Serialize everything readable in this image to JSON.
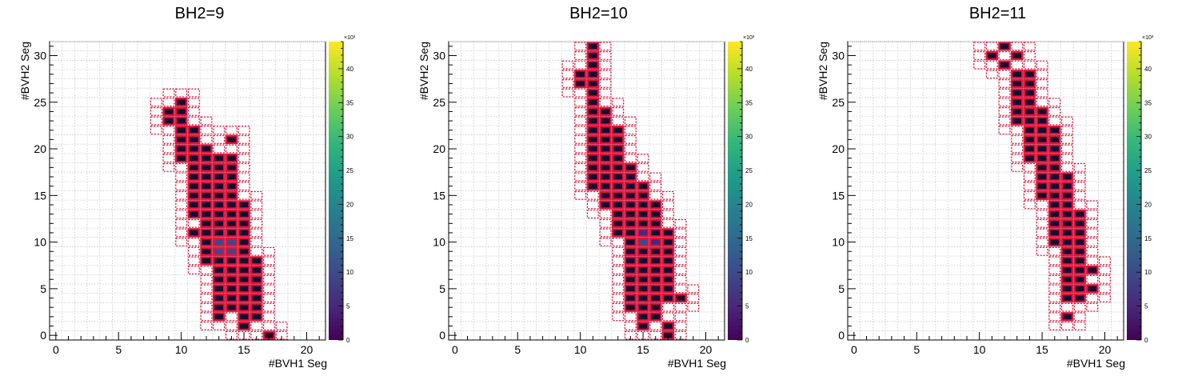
{
  "chart_data": [
    {
      "type": "heatmap",
      "title": "BH2=9",
      "xlabel": "#BVH1 Seg",
      "ylabel": "#BVH2 Seg",
      "xlim": [
        -0.5,
        21.5
      ],
      "ylim": [
        -0.5,
        31.5
      ],
      "x_ticks": [
        0,
        5,
        10,
        15,
        20
      ],
      "y_ticks": [
        0,
        5,
        10,
        15,
        20,
        25,
        30
      ],
      "z_multiplier": "×10³",
      "z_ticks": [
        0,
        5,
        10,
        15,
        20,
        25,
        30,
        35,
        40
      ],
      "zlim": [
        0,
        44
      ],
      "colormap": "viridis",
      "grid": true,
      "rows": [
        {
          "y": 0,
          "x": [
            17
          ]
        },
        {
          "y": 1,
          "x": [
            15
          ]
        },
        {
          "y": 2,
          "x": [
            13,
            15,
            16
          ]
        },
        {
          "y": 3,
          "x": [
            13,
            14,
            15,
            16
          ]
        },
        {
          "y": 4,
          "x": [
            13,
            14,
            15,
            16
          ]
        },
        {
          "y": 5,
          "x": [
            13,
            14,
            15,
            16
          ]
        },
        {
          "y": 6,
          "x": [
            13,
            14,
            15,
            16
          ]
        },
        {
          "y": 7,
          "x": [
            13,
            14,
            15,
            16
          ]
        },
        {
          "y": 8,
          "x": [
            12,
            13,
            14,
            15,
            16
          ]
        },
        {
          "y": 9,
          "x": [
            12,
            13,
            14,
            15
          ]
        },
        {
          "y": 10,
          "x": [
            12,
            13,
            14,
            15
          ]
        },
        {
          "y": 11,
          "x": [
            11,
            12,
            13,
            14,
            15
          ]
        },
        {
          "y": 12,
          "x": [
            12,
            13,
            14,
            15
          ]
        },
        {
          "y": 13,
          "x": [
            11,
            12,
            13,
            14,
            15
          ]
        },
        {
          "y": 14,
          "x": [
            11,
            12,
            13,
            14,
            15
          ]
        },
        {
          "y": 15,
          "x": [
            11,
            12,
            13,
            14
          ]
        },
        {
          "y": 16,
          "x": [
            11,
            12,
            13,
            14
          ]
        },
        {
          "y": 17,
          "x": [
            11,
            12,
            13,
            14
          ]
        },
        {
          "y": 18,
          "x": [
            11,
            12,
            13,
            14
          ]
        },
        {
          "y": 19,
          "x": [
            10,
            11,
            12,
            13,
            14
          ]
        },
        {
          "y": 20,
          "x": [
            10,
            11,
            12
          ]
        },
        {
          "y": 21,
          "x": [
            10,
            11,
            14
          ]
        },
        {
          "y": 22,
          "x": [
            10,
            11
          ]
        },
        {
          "y": 23,
          "x": [
            9,
            10
          ]
        },
        {
          "y": 24,
          "x": [
            9,
            10
          ]
        },
        {
          "y": 25,
          "x": [
            10
          ]
        }
      ],
      "highlights": [
        [
          13,
          10,
          6
        ],
        [
          14,
          10,
          5
        ],
        [
          13,
          9,
          5
        ],
        [
          14,
          9,
          4
        ]
      ]
    },
    {
      "type": "heatmap",
      "title": "BH2=10",
      "xlabel": "#BVH1 Seg",
      "ylabel": "#BVH2 Seg",
      "xlim": [
        -0.5,
        21.5
      ],
      "ylim": [
        -0.5,
        31.5
      ],
      "x_ticks": [
        0,
        5,
        10,
        15,
        20
      ],
      "y_ticks": [
        0,
        5,
        10,
        15,
        20,
        25,
        30
      ],
      "z_multiplier": "×10³",
      "z_ticks": [
        0,
        5,
        10,
        15,
        20,
        25,
        30,
        35,
        40
      ],
      "zlim": [
        0,
        44
      ],
      "colormap": "viridis",
      "grid": true,
      "rows": [
        {
          "y": 0,
          "x": [
            17
          ]
        },
        {
          "y": 1,
          "x": [
            15,
            17
          ]
        },
        {
          "y": 2,
          "x": [
            15,
            16
          ]
        },
        {
          "y": 3,
          "x": [
            14,
            15,
            16
          ]
        },
        {
          "y": 4,
          "x": [
            14,
            15,
            16,
            17,
            18
          ]
        },
        {
          "y": 5,
          "x": [
            14,
            15,
            16,
            17
          ]
        },
        {
          "y": 6,
          "x": [
            14,
            15,
            16,
            17
          ]
        },
        {
          "y": 7,
          "x": [
            14,
            15,
            16,
            17
          ]
        },
        {
          "y": 8,
          "x": [
            14,
            15,
            16,
            17
          ]
        },
        {
          "y": 9,
          "x": [
            14,
            15,
            16,
            17
          ]
        },
        {
          "y": 10,
          "x": [
            14,
            15,
            16,
            17
          ]
        },
        {
          "y": 11,
          "x": [
            13,
            14,
            15,
            16,
            17
          ]
        },
        {
          "y": 12,
          "x": [
            13,
            14,
            15,
            16
          ]
        },
        {
          "y": 13,
          "x": [
            13,
            14,
            15,
            16
          ]
        },
        {
          "y": 14,
          "x": [
            12,
            13,
            14,
            15,
            16
          ]
        },
        {
          "y": 15,
          "x": [
            12,
            13,
            14,
            15
          ]
        },
        {
          "y": 16,
          "x": [
            11,
            12,
            13,
            14,
            15
          ]
        },
        {
          "y": 17,
          "x": [
            11,
            12,
            13,
            14
          ]
        },
        {
          "y": 18,
          "x": [
            11,
            12,
            13,
            14
          ]
        },
        {
          "y": 19,
          "x": [
            11,
            12,
            13
          ]
        },
        {
          "y": 20,
          "x": [
            11,
            12,
            13
          ]
        },
        {
          "y": 21,
          "x": [
            11,
            12,
            13
          ]
        },
        {
          "y": 22,
          "x": [
            11,
            12,
            13
          ]
        },
        {
          "y": 23,
          "x": [
            11,
            12
          ]
        },
        {
          "y": 24,
          "x": [
            11,
            12
          ]
        },
        {
          "y": 25,
          "x": [
            11
          ]
        },
        {
          "y": 26,
          "x": [
            11
          ]
        },
        {
          "y": 27,
          "x": [
            10,
            11
          ]
        },
        {
          "y": 28,
          "x": [
            10,
            11
          ]
        },
        {
          "y": 29,
          "x": [
            11
          ]
        },
        {
          "y": 30,
          "x": [
            11
          ]
        },
        {
          "y": 31,
          "x": [
            11
          ]
        }
      ],
      "highlights": [
        [
          15,
          11,
          3
        ],
        [
          15,
          10,
          4
        ],
        [
          16,
          10,
          3
        ]
      ]
    },
    {
      "type": "heatmap",
      "title": "BH2=11",
      "xlabel": "#BVH1 Seg",
      "ylabel": "#BVH2 Seg",
      "xlim": [
        -0.5,
        21.5
      ],
      "ylim": [
        -0.5,
        31.5
      ],
      "x_ticks": [
        0,
        5,
        10,
        15,
        20
      ],
      "y_ticks": [
        0,
        5,
        10,
        15,
        20,
        25,
        30
      ],
      "z_multiplier": "×10³",
      "z_ticks": [
        0,
        5,
        10,
        15,
        20,
        25,
        30,
        35,
        40
      ],
      "zlim": [
        0,
        44
      ],
      "colormap": "viridis",
      "grid": true,
      "rows": [
        {
          "y": 2,
          "x": [
            17
          ]
        },
        {
          "y": 4,
          "x": [
            17,
            18
          ]
        },
        {
          "y": 5,
          "x": [
            17,
            18,
            19
          ]
        },
        {
          "y": 6,
          "x": [
            17,
            18
          ]
        },
        {
          "y": 7,
          "x": [
            17,
            18,
            19
          ]
        },
        {
          "y": 8,
          "x": [
            17,
            18
          ]
        },
        {
          "y": 9,
          "x": [
            17,
            18
          ]
        },
        {
          "y": 10,
          "x": [
            16,
            17,
            18
          ]
        },
        {
          "y": 11,
          "x": [
            16,
            17,
            18
          ]
        },
        {
          "y": 12,
          "x": [
            16,
            17,
            18
          ]
        },
        {
          "y": 13,
          "x": [
            16,
            17,
            18
          ]
        },
        {
          "y": 14,
          "x": [
            16,
            17
          ]
        },
        {
          "y": 15,
          "x": [
            15,
            16,
            17
          ]
        },
        {
          "y": 16,
          "x": [
            15,
            16,
            17
          ]
        },
        {
          "y": 17,
          "x": [
            15,
            16,
            17
          ]
        },
        {
          "y": 18,
          "x": [
            15,
            16
          ]
        },
        {
          "y": 19,
          "x": [
            14,
            15,
            16
          ]
        },
        {
          "y": 20,
          "x": [
            14,
            15,
            16
          ]
        },
        {
          "y": 21,
          "x": [
            14,
            15,
            16
          ]
        },
        {
          "y": 22,
          "x": [
            14,
            15,
            16
          ]
        },
        {
          "y": 23,
          "x": [
            13,
            14,
            15
          ]
        },
        {
          "y": 24,
          "x": [
            13,
            14,
            15
          ]
        },
        {
          "y": 25,
          "x": [
            13,
            14
          ]
        },
        {
          "y": 26,
          "x": [
            13,
            14
          ]
        },
        {
          "y": 27,
          "x": [
            13,
            14
          ]
        },
        {
          "y": 28,
          "x": [
            13,
            14
          ]
        },
        {
          "y": 29,
          "x": [
            12
          ]
        },
        {
          "y": 30,
          "x": [
            11,
            13
          ]
        },
        {
          "y": 31,
          "x": [
            12
          ]
        }
      ],
      "highlights": []
    }
  ]
}
